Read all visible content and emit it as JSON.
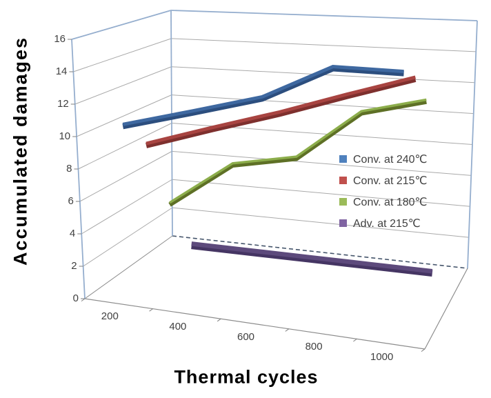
{
  "chart": {
    "y_axis_title": "Accumulated damages",
    "x_axis_title": "Thermal cycles",
    "frame_colors": {
      "wall_border": "#95AECE",
      "gridline": "#A9A9A9",
      "floor_edge": "#8C8C8C",
      "floor_back_dashed": "#44546A",
      "tick": "#7F7F7F",
      "label_text": "#404040",
      "title_text": "#000000"
    }
  },
  "chart_data": {
    "type": "line",
    "projection": "3d-ribbon",
    "title": "",
    "xlabel": "Thermal cycles",
    "ylabel": "Accumulated damages",
    "categories": [
      200,
      400,
      600,
      800,
      1000
    ],
    "x_tick_labels": [
      "200",
      "400",
      "600",
      "800",
      "1000"
    ],
    "y_ticks": [
      0,
      2,
      4,
      6,
      8,
      10,
      12,
      14,
      16
    ],
    "ylim": [
      0,
      16
    ],
    "grid": true,
    "legend_position": "middle-right",
    "series": [
      {
        "name": "Conv. at 240℃",
        "legend_color": "#4F81BD",
        "face_color": "#3E68A0",
        "edge_color": "#2C4E7E",
        "values": [
          10.6,
          11.8,
          13.0,
          15.1,
          15.1
        ]
      },
      {
        "name": "Conv. at 215℃",
        "legend_color": "#C0504D",
        "face_color": "#A84441",
        "edge_color": "#7E302E",
        "values": [
          8.7,
          10.1,
          11.4,
          12.8,
          14.1
        ]
      },
      {
        "name": "Conv. at 180℃",
        "legend_color": "#9BBB59",
        "face_color": "#8CAD4B",
        "edge_color": "#5E7026",
        "values": [
          4.0,
          7.0,
          7.8,
          11.0,
          12.0
        ]
      },
      {
        "name": "Adv. at 215℃",
        "legend_color": "#8064A2",
        "face_color": "#5D4A7C",
        "edge_color": "#453563",
        "values": [
          0.2,
          0.2,
          0.2,
          0.2,
          0.2
        ]
      }
    ]
  }
}
